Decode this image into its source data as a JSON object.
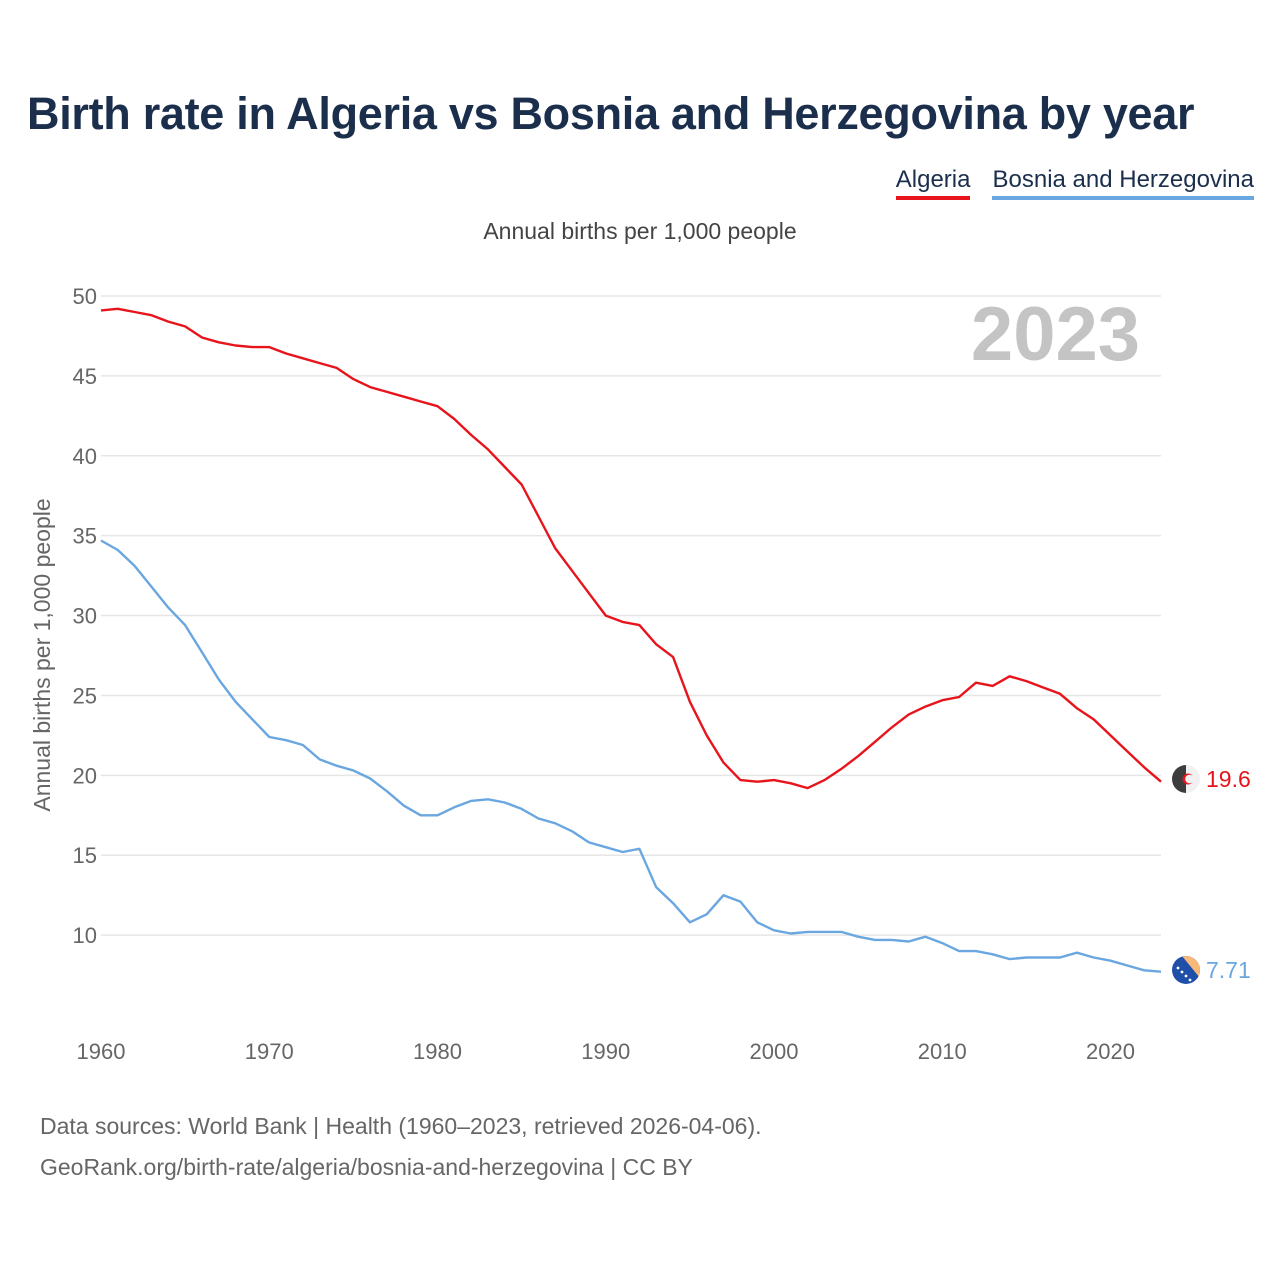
{
  "header": {
    "title": "Birth rate in Algeria vs Bosnia and Herzegovina by year",
    "subtitle": "Annual births per 1,000 people"
  },
  "legend": {
    "items": [
      {
        "label": "Algeria",
        "color": "#e8141c"
      },
      {
        "label": "Bosnia and Herzegovina",
        "color": "#6aa6e0"
      }
    ]
  },
  "footer": {
    "source_line": "Data sources: World Bank | Health (1960–2023, retrieved 2026-04-06).",
    "url_line": "GeoRank.org/birth-rate/algeria/bosnia-and-herzegovina | CC BY"
  },
  "chart_data": {
    "type": "line",
    "title": "Birth rate in Algeria vs Bosnia and Herzegovina by year",
    "ylabel": "Annual births per 1,000 people",
    "xlabel": "",
    "year_watermark": "2023",
    "xlim": [
      1960,
      2023
    ],
    "ylim": [
      5,
      50
    ],
    "x_ticks": [
      "1960",
      "1970",
      "1980",
      "1990",
      "2000",
      "2010",
      "2020"
    ],
    "y_ticks": [
      "10",
      "15",
      "20",
      "25",
      "30",
      "35",
      "40",
      "45",
      "50"
    ],
    "x": [
      1960,
      1961,
      1962,
      1963,
      1964,
      1965,
      1966,
      1967,
      1968,
      1969,
      1970,
      1971,
      1972,
      1973,
      1974,
      1975,
      1976,
      1977,
      1978,
      1979,
      1980,
      1981,
      1982,
      1983,
      1984,
      1985,
      1986,
      1987,
      1988,
      1989,
      1990,
      1991,
      1992,
      1993,
      1994,
      1995,
      1996,
      1997,
      1998,
      1999,
      2000,
      2001,
      2002,
      2003,
      2004,
      2005,
      2006,
      2007,
      2008,
      2009,
      2010,
      2011,
      2012,
      2013,
      2014,
      2015,
      2016,
      2017,
      2018,
      2019,
      2020,
      2021,
      2022,
      2023
    ],
    "series": [
      {
        "name": "Algeria",
        "color": "#e8141c",
        "end_label": "19.6",
        "values": [
          49.1,
          49.2,
          49.0,
          48.8,
          48.4,
          48.1,
          47.4,
          47.1,
          46.9,
          46.8,
          46.8,
          46.4,
          46.1,
          45.8,
          45.5,
          44.8,
          44.3,
          44.0,
          43.7,
          43.4,
          43.1,
          42.3,
          41.3,
          40.4,
          39.3,
          38.2,
          36.2,
          34.2,
          32.8,
          31.4,
          30.0,
          29.6,
          29.4,
          28.2,
          27.4,
          24.6,
          22.5,
          20.8,
          19.7,
          19.6,
          19.7,
          19.5,
          19.2,
          19.7,
          20.4,
          21.2,
          22.1,
          23.0,
          23.8,
          24.3,
          24.7,
          24.9,
          25.8,
          25.6,
          26.2,
          25.9,
          25.5,
          25.1,
          24.2,
          23.5,
          22.5,
          21.5,
          20.5,
          19.6
        ]
      },
      {
        "name": "Bosnia and Herzegovina",
        "color": "#6aa6e0",
        "end_label": "7.71",
        "values": [
          34.7,
          34.1,
          33.1,
          31.8,
          30.5,
          29.4,
          27.7,
          26.0,
          24.6,
          23.5,
          22.4,
          22.2,
          21.9,
          21.0,
          20.6,
          20.3,
          19.8,
          19.0,
          18.1,
          17.5,
          17.5,
          18.0,
          18.4,
          18.5,
          18.3,
          17.9,
          17.3,
          17.0,
          16.5,
          15.8,
          15.5,
          15.2,
          15.4,
          13.0,
          12.0,
          10.8,
          11.3,
          12.5,
          12.1,
          10.8,
          10.3,
          10.1,
          10.2,
          10.2,
          10.2,
          9.9,
          9.7,
          9.7,
          9.6,
          9.9,
          9.5,
          9.0,
          9.0,
          8.8,
          8.5,
          8.6,
          8.6,
          8.6,
          8.9,
          8.6,
          8.4,
          8.1,
          7.8,
          7.71
        ]
      }
    ]
  }
}
